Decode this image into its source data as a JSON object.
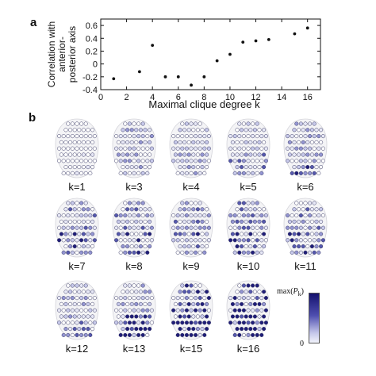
{
  "panel_a": {
    "letter": "a"
  },
  "panel_b": {
    "letter": "b"
  },
  "chart_data": {
    "type": "scatter",
    "xlabel": "Maximal clique degree k",
    "ylabel_lines": [
      "Correlation with",
      "anterior-",
      "posterior axis"
    ],
    "xlim": [
      0,
      17
    ],
    "ylim": [
      -0.4,
      0.7
    ],
    "xticks": [
      0,
      2,
      4,
      6,
      8,
      10,
      12,
      14,
      16
    ],
    "yticks": [
      -0.4,
      -0.2,
      0,
      0.2,
      0.4,
      0.6
    ],
    "ytick_labels": [
      "-0.4",
      "-0.2",
      "0",
      "0.2",
      "0.4",
      "0.6"
    ],
    "grid": false,
    "x": [
      1,
      3,
      4,
      5,
      6,
      7,
      8,
      9,
      10,
      11,
      12,
      13,
      15,
      16
    ],
    "y": [
      -0.23,
      -0.12,
      0.29,
      -0.2,
      -0.2,
      -0.33,
      -0.2,
      0.05,
      0.15,
      0.34,
      0.36,
      0.38,
      0.47,
      0.56
    ]
  },
  "brains": [
    {
      "label": "k=1",
      "level": 0.08
    },
    {
      "label": "k=3",
      "level": 0.3
    },
    {
      "label": "k=4",
      "level": 0.25
    },
    {
      "label": "k=5",
      "level": 0.3
    },
    {
      "label": "k=6",
      "level": 0.35
    },
    {
      "label": "k=7",
      "level": 0.45
    },
    {
      "label": "k=8",
      "level": 0.42
    },
    {
      "label": "k=9",
      "level": 0.4
    },
    {
      "label": "k=10",
      "level": 0.45
    },
    {
      "label": "k=11",
      "level": 0.4
    },
    {
      "label": "k=12",
      "level": 0.3
    },
    {
      "label": "k=13",
      "level": 0.35
    },
    {
      "label": "k=15",
      "level": 0.6
    },
    {
      "label": "k=16",
      "level": 0.65
    }
  ],
  "colorbar": {
    "max_label": "max(P_k)",
    "min_label": "0",
    "high_color": "#15116e",
    "low_color": "#f2f3fb"
  }
}
